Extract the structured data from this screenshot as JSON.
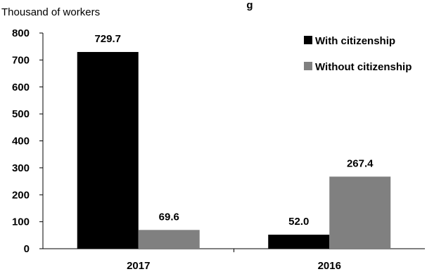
{
  "chart_data": {
    "type": "bar",
    "title": "g",
    "ylabel": "Thousand of workers",
    "xlabel": "",
    "categories": [
      "2017",
      "2016"
    ],
    "series": [
      {
        "name": "With citizenship",
        "values": [
          729.7,
          52.0
        ],
        "labels": [
          "729.7",
          "52.0"
        ],
        "color": "#000000"
      },
      {
        "name": "Without citizenship",
        "values": [
          69.6,
          267.4
        ],
        "labels": [
          "69.6",
          "267.4"
        ],
        "color": "#808080"
      }
    ],
    "ylim": [
      0,
      800
    ],
    "yticks": [
      0,
      100,
      200,
      300,
      400,
      500,
      600,
      700,
      800
    ],
    "grid": false,
    "legend_position": "top-right"
  }
}
